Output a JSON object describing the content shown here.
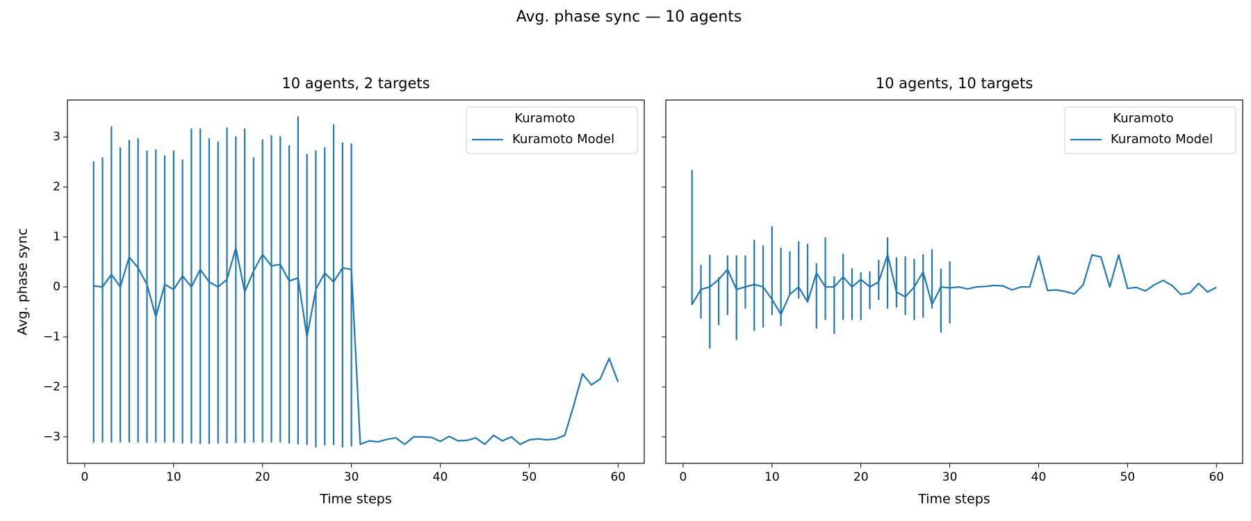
{
  "title": "Avg. phase sync — 10 agents",
  "chart_data": [
    {
      "type": "line",
      "title": "10 agents, 2 targets",
      "xlabel": "Time steps",
      "ylabel": "Avg. phase sync",
      "xlim": [
        -1.95,
        62.95
      ],
      "ylim": [
        -3.53,
        3.74
      ],
      "xticks": [
        0,
        10,
        20,
        30,
        40,
        50,
        60
      ],
      "yticks": [
        -3,
        -2,
        -1,
        0,
        1,
        2,
        3
      ],
      "show_ytick_labels": true,
      "legend_title": "Kuramoto",
      "legend": "upper right",
      "series": [
        {
          "name": "Kuramoto Model",
          "color": "#1f77b4",
          "x": [
            1,
            1,
            1,
            1,
            2,
            2,
            2,
            2,
            3,
            3,
            3,
            3,
            4,
            4,
            4,
            4,
            5,
            5,
            5,
            5,
            6,
            6,
            6,
            6,
            7,
            7,
            7,
            7,
            8,
            8,
            8,
            8,
            9,
            9,
            9,
            9,
            10,
            10,
            10,
            10,
            11,
            11,
            11,
            11,
            12,
            12,
            12,
            12,
            13,
            13,
            13,
            13,
            14,
            14,
            14,
            14,
            15,
            15,
            15,
            15,
            16,
            16,
            16,
            16,
            17,
            17,
            17,
            17,
            18,
            18,
            18,
            18,
            19,
            19,
            19,
            19,
            20,
            20,
            20,
            20,
            21,
            21,
            21,
            21,
            22,
            22,
            22,
            22,
            23,
            23,
            23,
            23,
            24,
            24,
            24,
            24,
            25,
            25,
            25,
            25,
            26,
            26,
            26,
            26,
            27,
            27,
            27,
            27,
            28,
            28,
            28,
            28,
            29,
            29,
            29,
            29,
            30,
            30,
            30,
            30,
            31,
            32,
            33,
            34,
            35,
            36,
            37,
            38,
            39,
            40,
            41,
            42,
            43,
            44,
            45,
            46,
            47,
            48,
            49,
            50,
            51,
            52,
            53,
            54,
            55,
            56,
            57,
            58,
            59,
            60
          ],
          "values": [
            0.02,
            2.5,
            -3.1,
            0.02,
            0,
            2.58,
            -3.1,
            0,
            0.25,
            3.2,
            -3.1,
            0.25,
            0,
            2.78,
            -3.1,
            0,
            0.6,
            2.93,
            -3.1,
            0.6,
            0.38,
            2.96,
            -3.1,
            0.38,
            0.05,
            2.72,
            -3.11,
            0.05,
            -0.6,
            2.74,
            -3.1,
            -0.6,
            0.05,
            2.62,
            -3.1,
            0.05,
            -0.05,
            2.72,
            -3.1,
            -0.05,
            0.22,
            2.54,
            -3.12,
            0.22,
            0,
            3.16,
            -3.12,
            0,
            0.35,
            3.16,
            -3.13,
            0.35,
            0.1,
            2.96,
            -3.13,
            0.1,
            0,
            2.9,
            -3.12,
            0,
            0.15,
            3.18,
            -3.12,
            0.15,
            0.78,
            3,
            -3.11,
            0.78,
            -0.1,
            3.16,
            -3.11,
            -0.1,
            0.32,
            2.58,
            -3.1,
            0.32,
            0.65,
            2.94,
            -3.1,
            0.65,
            0.42,
            3.02,
            -3.1,
            0.42,
            0.45,
            3,
            -3.1,
            0.45,
            0.12,
            2.82,
            -3.12,
            0.12,
            0.18,
            3.4,
            -3.14,
            0.18,
            -1,
            2.65,
            -3.15,
            -1,
            -0.05,
            2.72,
            -3.2,
            -0.05,
            0.28,
            2.78,
            -3.16,
            0.28,
            0.1,
            3.24,
            -3.15,
            0.1,
            0.38,
            2.88,
            -3.2,
            0.38,
            0.35,
            2.86,
            -3.18,
            0.35,
            -3.15,
            -3.08,
            -3.1,
            -3.05,
            -3.02,
            -3.15,
            -3,
            -3,
            -3.01,
            -3.09,
            -2.99,
            -3.08,
            -3.07,
            -3.02,
            -3.15,
            -2.97,
            -3.08,
            -3,
            -3.15,
            -3.06,
            -3.04,
            -3.06,
            -3.04,
            -2.97,
            -2.38,
            -1.74,
            -1.96,
            -1.84,
            -1.43,
            -1.9
          ]
        }
      ]
    },
    {
      "type": "line",
      "title": "10 agents, 10 targets",
      "xlabel": "Time steps",
      "xlim": [
        -1.95,
        62.95
      ],
      "ylim": [
        -3.53,
        3.74
      ],
      "xticks": [
        0,
        10,
        20,
        30,
        40,
        50,
        60
      ],
      "yticks": [
        -3,
        -2,
        -1,
        0,
        1,
        2,
        3
      ],
      "show_ytick_labels": false,
      "legend_title": "Kuramoto",
      "legend": "upper right",
      "series": [
        {
          "name": "Kuramoto Model",
          "color": "#1f77b4",
          "x": [
            1,
            1,
            1,
            1,
            2,
            2,
            2,
            2,
            3,
            3,
            3,
            3,
            4,
            4,
            4,
            4,
            5,
            5,
            5,
            5,
            6,
            6,
            6,
            6,
            7,
            7,
            7,
            7,
            8,
            8,
            8,
            8,
            9,
            9,
            9,
            9,
            10,
            10,
            10,
            10,
            11,
            11,
            11,
            11,
            12,
            12,
            12,
            12,
            13,
            13,
            13,
            13,
            14,
            14,
            14,
            14,
            15,
            15,
            15,
            15,
            16,
            16,
            16,
            16,
            17,
            17,
            17,
            17,
            18,
            18,
            18,
            18,
            19,
            19,
            19,
            19,
            20,
            20,
            20,
            20,
            21,
            21,
            21,
            21,
            22,
            22,
            22,
            22,
            23,
            23,
            23,
            23,
            24,
            24,
            24,
            24,
            25,
            25,
            25,
            25,
            26,
            26,
            26,
            26,
            27,
            27,
            27,
            27,
            28,
            28,
            28,
            28,
            29,
            29,
            29,
            29,
            30,
            30,
            30,
            30,
            31,
            32,
            33,
            34,
            35,
            36,
            37,
            38,
            39,
            40,
            41,
            42,
            43,
            44,
            45,
            46,
            47,
            48,
            49,
            50,
            51,
            52,
            53,
            54,
            55,
            56,
            57,
            58,
            59,
            60
          ],
          "values": [
            -0.35,
            2.33,
            -0.35,
            -0.35,
            -0.05,
            0.43,
            -0.62,
            -0.05,
            0,
            0.63,
            -1.22,
            0,
            0.15,
            0.18,
            -0.75,
            0.15,
            0.35,
            0.62,
            -0.55,
            0.35,
            -0.05,
            0.62,
            -1.05,
            -0.05,
            0,
            0.62,
            -0.42,
            0,
            0.05,
            0.93,
            -0.87,
            0.05,
            0,
            0.82,
            -0.8,
            0,
            -0.25,
            1.2,
            -0.55,
            -0.25,
            -0.55,
            0.77,
            -0.77,
            -0.55,
            -0.15,
            0.7,
            -0.15,
            -0.15,
            0,
            0.9,
            -0.22,
            0,
            -0.3,
            0.85,
            -0.3,
            -0.3,
            0.28,
            0.46,
            -0.82,
            0.28,
            0,
            0.98,
            -0.65,
            0,
            0,
            0.2,
            -0.93,
            0,
            0.2,
            0.65,
            -0.65,
            0.2,
            0,
            0.36,
            -0.65,
            0,
            0.15,
            0.28,
            -0.65,
            0.15,
            0,
            0.3,
            -0.43,
            0,
            0.1,
            0.53,
            -0.25,
            0.1,
            0.65,
            0.98,
            -0.42,
            0.65,
            -0.1,
            0.58,
            -0.4,
            -0.1,
            -0.2,
            0.6,
            -0.55,
            -0.2,
            0,
            0.55,
            -0.65,
            0,
            0.3,
            0.64,
            -0.6,
            0.3,
            -0.35,
            0.74,
            -0.42,
            -0.35,
            0,
            0.35,
            -0.9,
            0,
            -0.02,
            0.5,
            -0.72,
            -0.02,
            0,
            -0.04,
            0,
            0.01,
            0.03,
            0.02,
            -0.06,
            0,
            0,
            0.62,
            -0.07,
            -0.06,
            -0.09,
            -0.14,
            0.04,
            0.64,
            0.6,
            0,
            0.64,
            -0.03,
            -0.01,
            -0.08,
            0.04,
            0.13,
            0.03,
            -0.15,
            -0.12,
            0.07,
            -0.1,
            -0.01
          ]
        }
      ]
    }
  ]
}
